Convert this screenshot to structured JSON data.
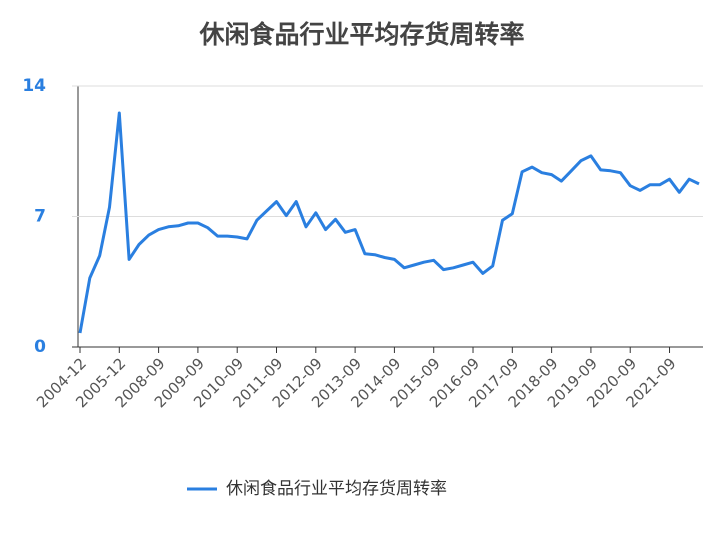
{
  "chart_data": {
    "type": "line",
    "title": "休闲食品行业平均存货周转率",
    "categories": [
      "2004-12",
      null,
      null,
      null,
      "2005-12",
      null,
      null,
      null,
      "2008-09",
      null,
      null,
      null,
      "2009-09",
      null,
      null,
      null,
      "2010-09",
      null,
      null,
      null,
      "2011-09",
      null,
      null,
      null,
      "2012-09",
      null,
      null,
      null,
      "2013-09",
      null,
      null,
      null,
      "2014-09",
      null,
      null,
      null,
      "2015-09",
      null,
      null,
      null,
      "2016-09",
      null,
      null,
      null,
      "2017-09",
      null,
      null,
      null,
      "2018-09",
      null,
      null,
      null,
      "2019-09",
      null,
      null,
      null,
      "2020-09",
      null,
      null,
      null,
      "2021-09",
      null,
      null,
      null
    ],
    "series": [
      {
        "name": "休闲食品行业平均存货周转率",
        "color": "#2a7fe0",
        "values": [
          0.75,
          3.7,
          4.9,
          7.5,
          12.55,
          4.7,
          5.5,
          6.0,
          6.3,
          6.45,
          6.5,
          6.65,
          6.65,
          6.4,
          5.95,
          5.95,
          5.9,
          5.8,
          6.8,
          7.3,
          7.8,
          7.05,
          7.8,
          6.45,
          7.2,
          6.3,
          6.85,
          6.15,
          6.3,
          5.0,
          4.95,
          4.8,
          4.7,
          4.25,
          4.4,
          4.55,
          4.65,
          4.15,
          4.25,
          4.4,
          4.55,
          3.95,
          4.35,
          6.8,
          7.15,
          9.4,
          9.65,
          9.35,
          9.25,
          8.9,
          9.45,
          10.0,
          10.25,
          9.5,
          9.45,
          9.35,
          8.65,
          8.4,
          8.7,
          8.7,
          9.0,
          8.3,
          9.0,
          8.75
        ]
      }
    ],
    "ylim": [
      0,
      14
    ],
    "yticks": [
      0,
      7,
      14
    ],
    "grid": true,
    "legend": "bottom"
  }
}
